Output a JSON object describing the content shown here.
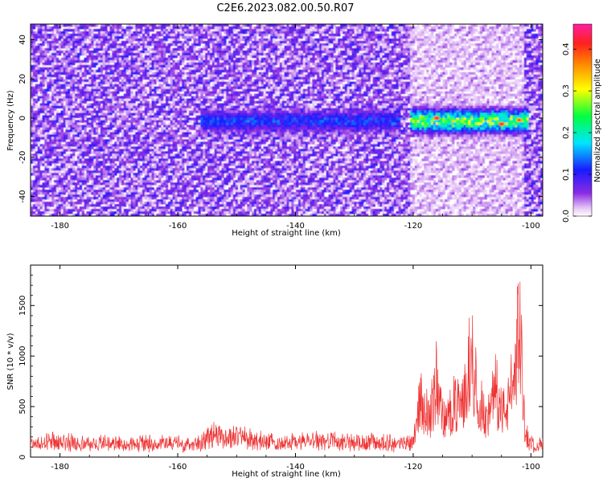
{
  "title": "C2E6.2023.082.00.50.R07",
  "chart_data": [
    {
      "type": "heatmap",
      "xlabel": "Height of straight line (km)",
      "ylabel": "Frequency (Hz)",
      "xlim": [
        -185,
        -98
      ],
      "ylim": [
        -50,
        48
      ],
      "x_ticks": [
        -180,
        -160,
        -140,
        -120,
        -100
      ],
      "y_ticks": [
        -40,
        -20,
        0,
        20,
        40
      ],
      "colorbar": {
        "label": "Normalized spectral amplitude",
        "range": [
          0.0,
          0.46
        ],
        "ticks": [
          0.0,
          0.1,
          0.2,
          0.3,
          0.4
        ],
        "colormap": "rainbow (white to violet to blue to cyan to green to yellow to red to magenta)"
      },
      "features": [
        {
          "label": "signal band near 0 Hz",
          "x_range": [
            -155,
            -123
          ],
          "y_center": -2,
          "peak_amplitude": 0.15
        },
        {
          "label": "strong band near 0 Hz",
          "x_range": [
            -120,
            -101
          ],
          "y_center": 0,
          "peak_amplitude": 0.42
        },
        {
          "label": "peak",
          "x": -116,
          "y": 0,
          "amplitude": 0.43
        },
        {
          "label": "peak",
          "x": -105,
          "y": -3,
          "amplitude": 0.43
        },
        {
          "label": "peak",
          "x": -102,
          "y": -1,
          "amplitude": 0.4
        }
      ],
      "colors": {
        "noise": "#8a2be2",
        "signal_low": "#1a1aff",
        "signal_high": "#ff2a2a"
      }
    },
    {
      "type": "line",
      "xlabel": "Height of straight line (km)",
      "ylabel": "SNR (10 * v/v)",
      "xlim": [
        -185,
        -98
      ],
      "ylim": [
        0,
        1900
      ],
      "x_ticks": [
        -180,
        -160,
        -140,
        -120,
        -100
      ],
      "y_ticks": [
        0,
        500,
        1000,
        1500
      ],
      "line_color": "#ee3333",
      "series": [
        {
          "x": [
            -185,
            -181,
            -176,
            -172,
            -168,
            -164,
            -160,
            -156,
            -154,
            -152,
            -150,
            -148,
            -145,
            -142,
            -139,
            -136,
            -133,
            -130,
            -127,
            -124,
            -122,
            -120,
            -119,
            -118,
            -117,
            -116,
            -115,
            -114,
            -113,
            -112,
            -111,
            -110,
            -109,
            -108,
            -107,
            -106,
            -105,
            -104,
            -103,
            -102,
            -101.5,
            -101,
            -100,
            -99,
            -98
          ],
          "y": [
            170,
            200,
            180,
            175,
            165,
            180,
            170,
            200,
            300,
            260,
            270,
            230,
            200,
            190,
            200,
            210,
            200,
            180,
            190,
            180,
            170,
            220,
            700,
            600,
            550,
            950,
            520,
            450,
            750,
            600,
            900,
            1300,
            780,
            500,
            550,
            820,
            600,
            650,
            900,
            1800,
            1100,
            300,
            170,
            150,
            170
          ]
        }
      ]
    }
  ]
}
